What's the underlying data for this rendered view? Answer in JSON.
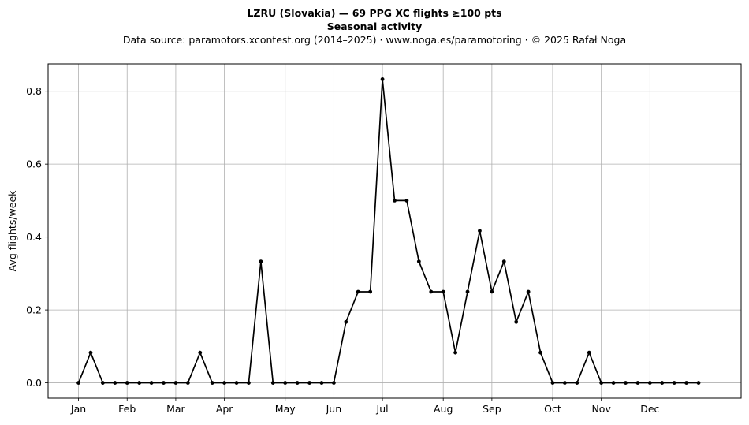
{
  "chart_data": {
    "type": "line",
    "title": "LZRU (Slovakia)  —  69 PPG XC flights ≥100 pts",
    "subtitle": "Seasonal activity",
    "source_line": "Data source: paramotors.xcontest.org (2014–2025)  ·  www.noga.es/paramotoring  ·  © 2025 Rafał Noga",
    "xlabel": "",
    "ylabel": "Avg flights/week",
    "x_ticks": [
      {
        "label": "Jan",
        "week": 1
      },
      {
        "label": "Feb",
        "week": 5
      },
      {
        "label": "Mar",
        "week": 9
      },
      {
        "label": "Apr",
        "week": 13
      },
      {
        "label": "May",
        "week": 18
      },
      {
        "label": "Jun",
        "week": 22
      },
      {
        "label": "Jul",
        "week": 26
      },
      {
        "label": "Aug",
        "week": 31
      },
      {
        "label": "Sep",
        "week": 35
      },
      {
        "label": "Oct",
        "week": 40
      },
      {
        "label": "Nov",
        "week": 44
      },
      {
        "label": "Dec",
        "week": 48
      }
    ],
    "y_ticks": [
      0.0,
      0.2,
      0.4,
      0.6,
      0.8
    ],
    "y_tick_labels": [
      "0.0",
      "0.2",
      "0.4",
      "0.6",
      "0.8"
    ],
    "xlim": [
      -1.5,
      55.5
    ],
    "ylim": [
      -0.042,
      0.875
    ],
    "grid": true,
    "line_color": "#000000",
    "grid_color": "#b0b0b0",
    "series": [
      {
        "x": [
          1,
          2,
          3,
          4,
          5,
          6,
          7,
          8,
          9,
          10,
          11,
          12,
          13,
          14,
          15,
          16,
          17,
          18,
          19,
          20,
          21,
          22,
          23,
          24,
          25,
          26,
          27,
          28,
          29,
          30,
          31,
          32,
          33,
          34,
          35,
          36,
          37,
          38,
          39,
          40,
          41,
          42,
          43,
          44,
          45,
          46,
          47,
          48,
          49,
          50,
          51,
          52
        ],
        "values": [
          0,
          0.083,
          0,
          0,
          0,
          0,
          0,
          0,
          0,
          0,
          0.083,
          0,
          0,
          0,
          0,
          0.333,
          0,
          0,
          0,
          0,
          0,
          0,
          0.167,
          0.25,
          0.25,
          0.833,
          0.5,
          0.5,
          0.333,
          0.25,
          0.25,
          0.083,
          0.25,
          0.417,
          0.25,
          0.333,
          0.167,
          0.25,
          0.083,
          0,
          0,
          0,
          0.083,
          0,
          0,
          0,
          0,
          0,
          0,
          0,
          0,
          0
        ]
      }
    ]
  }
}
